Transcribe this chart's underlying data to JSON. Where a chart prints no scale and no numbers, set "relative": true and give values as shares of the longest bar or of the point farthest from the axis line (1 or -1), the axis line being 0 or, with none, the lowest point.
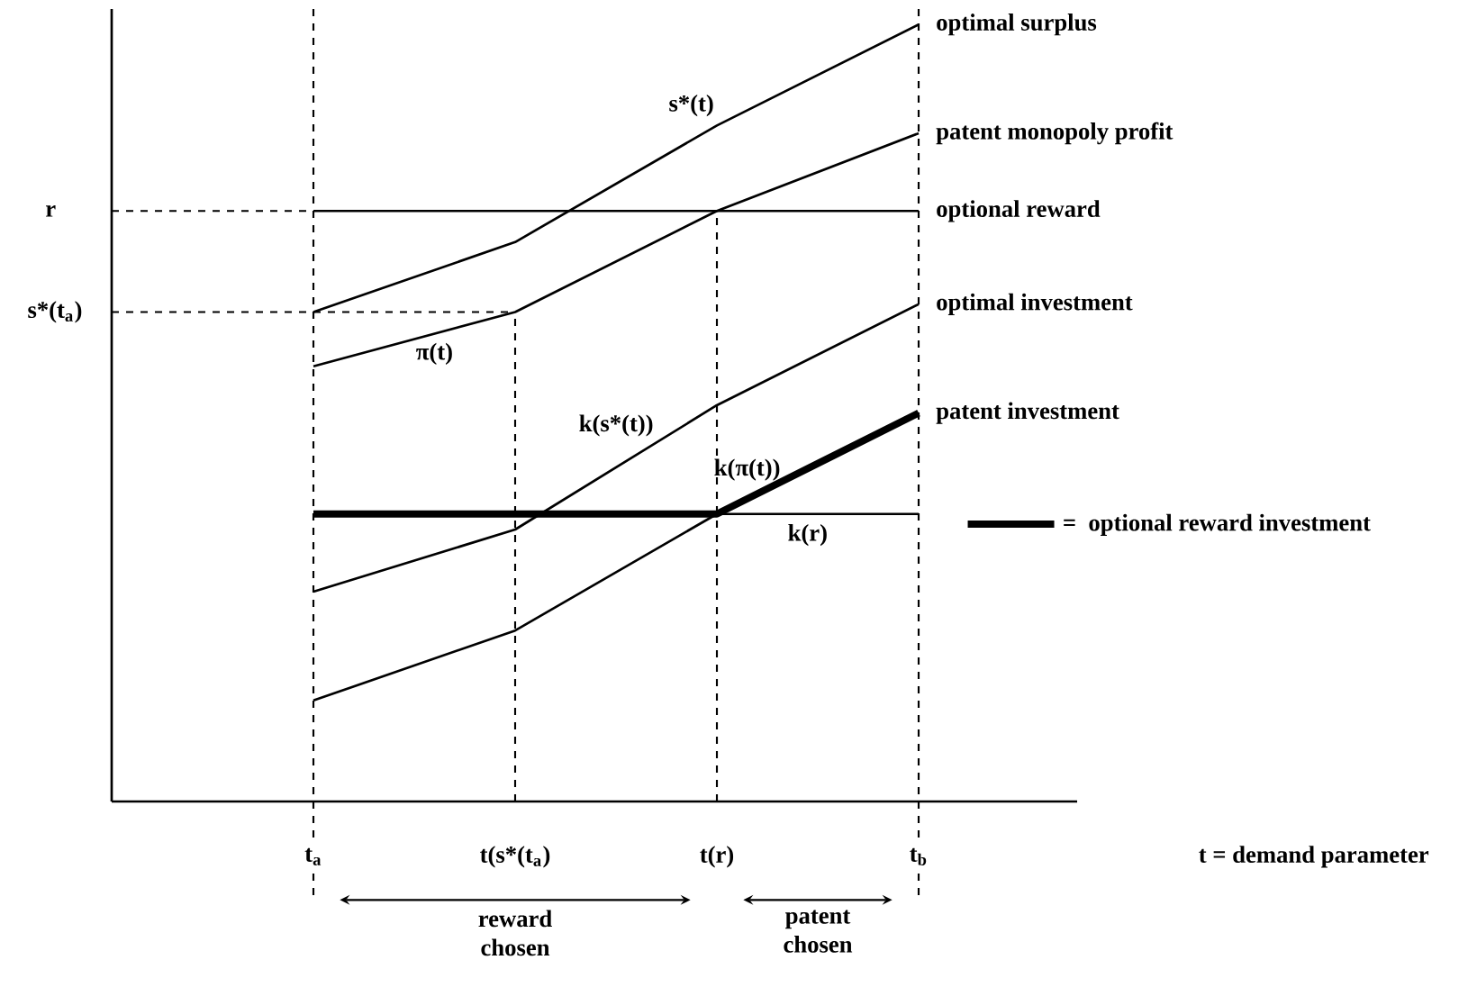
{
  "chart_data": {
    "type": "line",
    "relative": true,
    "categories": [
      null,
      "t$_{a}$",
      "t(s*(t$_{a}$)",
      "t(r)",
      "t$_{b}$"
    ],
    "legend": "right",
    "series": [
      {
        "name": "optimal surplus",
        "color": "#000000",
        "values": [
          null,
          0.63,
          0.72,
          0.87,
          1
        ]
      },
      {
        "name": "patent monopoly profit",
        "color": "#000000",
        "values": [
          null,
          0.56,
          0.63,
          0.76,
          0.86
        ]
      },
      {
        "name": "optional reward",
        "color": "#000000",
        "values": [
          null,
          0.76,
          0.76,
          0.76,
          0.76
        ]
      },
      {
        "name": "optimal investment",
        "color": "#000000",
        "values": [
          null,
          0.27,
          0.35,
          0.51,
          0.64
        ]
      },
      {
        "name": "patent investment",
        "color": "#000000",
        "values": [
          null,
          0.13,
          0.22,
          0.37,
          0.5
        ]
      },
      {
        "color": "#000000",
        "values": [
          null,
          null,
          null,
          0.37,
          0.37
        ]
      },
      {
        "color": "#000000",
        "line_style": "dashed",
        "values": [
          0.76,
          0.76,
          null,
          null,
          null
        ]
      },
      {
        "color": "#000000",
        "line_style": "dashed",
        "values": [
          0.63,
          0.63,
          0.63,
          null,
          null
        ]
      },
      {
        "color": "#000000",
        "line_style": "dashed",
        "x": [
          "t(s*(t$_{a}$)",
          "t(s*(t$_{a}$)"
        ],
        "values": [
          0,
          0.63
        ]
      },
      {
        "color": "#000000",
        "line_style": "dashed",
        "x": [
          "t(r)",
          "t(r)"
        ],
        "values": [
          0,
          0.76
        ]
      },
      {
        "name": "optional reward investment",
        "color": "#000000",
        "values": [
          null,
          0.37,
          0.37,
          0.37,
          0.5
        ]
      }
    ],
    "ref_lines": [
      {
        "axis": "x",
        "value": "t$_{a}$",
        "line_style": "dashed"
      },
      {
        "axis": "x",
        "value": "t$_{b}$",
        "line_style": "dashed"
      }
    ],
    "annotations": [
      "s*(t)",
      "π(t)",
      "k(s*(t))",
      "k(π(t))",
      "k(r)",
      "r",
      "s*(t$_{a}$)",
      "reward chosen",
      "patent chosen",
      "=",
      "t = demand parameter"
    ]
  }
}
